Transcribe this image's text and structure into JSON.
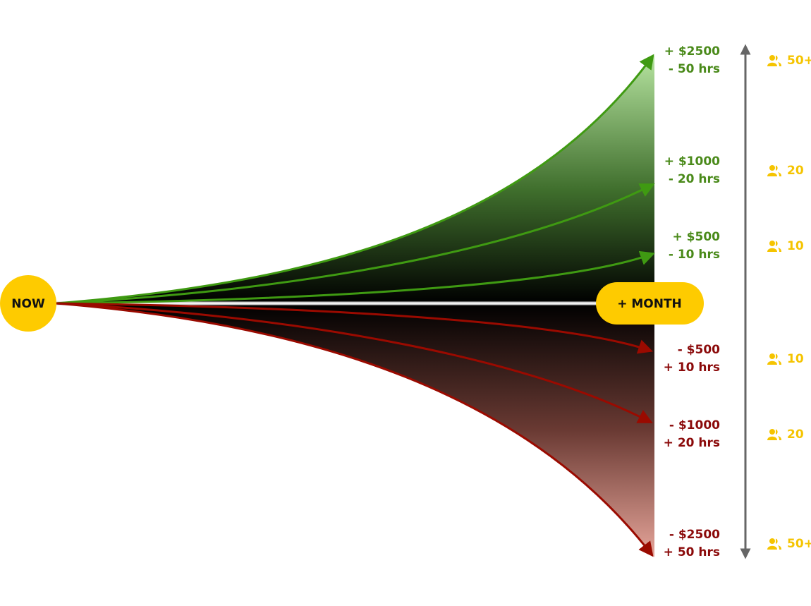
{
  "start": {
    "label": "NOW"
  },
  "end": {
    "label": "+ MONTH"
  },
  "outcomes": [
    {
      "money": "+ $2500",
      "time": "- 50 hrs",
      "people": "50+"
    },
    {
      "money": "+ $1000",
      "time": "- 20 hrs",
      "people": "20"
    },
    {
      "money": "+ $500",
      "time": "- 10 hrs",
      "people": "10"
    },
    {
      "money": "- $500",
      "time": "+ 10 hrs",
      "people": "10"
    },
    {
      "money": "- $1000",
      "time": "+ 20 hrs",
      "people": "20"
    },
    {
      "money": "- $2500",
      "time": "+ 50 hrs",
      "people": "50+"
    }
  ]
}
